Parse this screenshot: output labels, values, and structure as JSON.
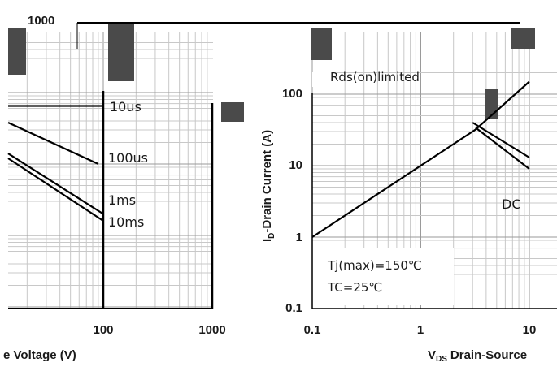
{
  "chart_data": [
    {
      "type": "line",
      "x_scale": "log",
      "y_scale": "log",
      "title": "",
      "xlabel": "e Voltage (V)",
      "ylabel": "",
      "x_ticks": [
        "100",
        "1000"
      ],
      "y_ticks": [
        "1000"
      ],
      "series": [
        {
          "name": "10us",
          "x": [
            8,
            100
          ],
          "y": [
            65,
            65
          ]
        },
        {
          "name": "100us",
          "x": [
            10,
            90
          ],
          "y": [
            38,
            10
          ]
        },
        {
          "name": "1ms",
          "x": [
            10,
            100
          ],
          "y": [
            14,
            2
          ]
        },
        {
          "name": "10ms",
          "x": [
            10,
            100
          ],
          "y": [
            12,
            1.6
          ]
        }
      ]
    },
    {
      "type": "line",
      "x_scale": "log",
      "y_scale": "log",
      "xlim": [
        0.1,
        10
      ],
      "ylim": [
        0.1,
        100
      ],
      "title": "",
      "xlabel": "Drain-Source",
      "xlabel_symbol": "V",
      "xlabel_subscript": "DS",
      "ylabel": "-Drain Current (A)",
      "ylabel_symbol": "I",
      "ylabel_subscript": "D",
      "x_ticks": [
        "0.1",
        "1",
        "10"
      ],
      "y_ticks": [
        "0.1",
        "1",
        "10",
        "100"
      ],
      "annotations": [
        "Rds(on)limited",
        "Tj(max)=150℃",
        "TC=25℃"
      ],
      "series": [
        {
          "name": "Rds(on)limited",
          "x": [
            0.1,
            3.2,
            10
          ],
          "y": [
            1,
            32,
            150
          ]
        },
        {
          "name": "",
          "x": [
            3.0,
            10
          ],
          "y": [
            40,
            13
          ]
        },
        {
          "name": "DC",
          "x": [
            3.2,
            10
          ],
          "y": [
            34,
            9
          ]
        }
      ]
    }
  ]
}
